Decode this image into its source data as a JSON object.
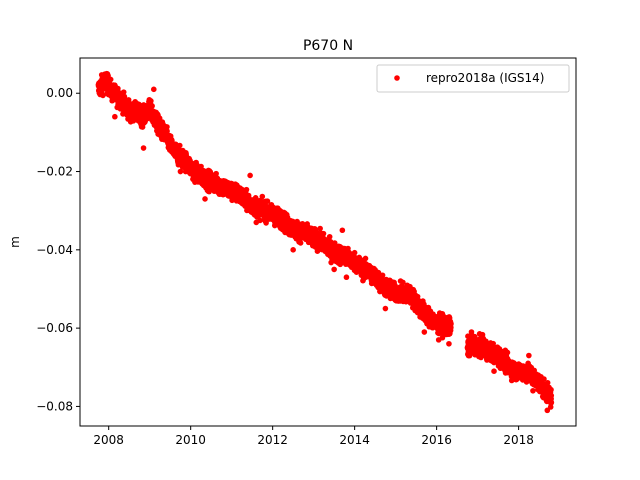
{
  "chart_data": {
    "type": "scatter",
    "title": "P670 N",
    "xlabel": "",
    "ylabel": "m",
    "xlim": [
      2007.3,
      2019.4
    ],
    "ylim": [
      -0.085,
      0.009
    ],
    "x_ticks": [
      2008,
      2010,
      2012,
      2014,
      2016,
      2018
    ],
    "y_ticks": [
      0.0,
      -0.02,
      -0.04,
      -0.06,
      -0.08
    ],
    "y_tick_labels": [
      "0.00",
      "−0.02",
      "−0.04",
      "−0.06",
      "−0.08"
    ],
    "grid": false,
    "legend_position": "top-right",
    "series": [
      {
        "name": "repro2018a (IGS14)",
        "color": "#ff0000",
        "marker": "circle",
        "gaps": [
          [
            2016.35,
            2016.75
          ]
        ],
        "points": [
          [
            2007.75,
            0.001
          ],
          [
            2007.9,
            0.003
          ],
          [
            2008.0,
            0.002
          ],
          [
            2008.1,
            0.0
          ],
          [
            2008.25,
            -0.001
          ],
          [
            2008.4,
            -0.003
          ],
          [
            2008.55,
            -0.005
          ],
          [
            2008.7,
            -0.005
          ],
          [
            2008.85,
            -0.006
          ],
          [
            2009.0,
            -0.004
          ],
          [
            2009.1,
            -0.006
          ],
          [
            2009.25,
            -0.009
          ],
          [
            2009.4,
            -0.011
          ],
          [
            2009.55,
            -0.014
          ],
          [
            2009.7,
            -0.016
          ],
          [
            2009.85,
            -0.017
          ],
          [
            2010.0,
            -0.019
          ],
          [
            2010.2,
            -0.021
          ],
          [
            2010.4,
            -0.022
          ],
          [
            2010.6,
            -0.023
          ],
          [
            2010.8,
            -0.024
          ],
          [
            2011.0,
            -0.025
          ],
          [
            2011.2,
            -0.026
          ],
          [
            2011.4,
            -0.028
          ],
          [
            2011.6,
            -0.029
          ],
          [
            2011.8,
            -0.03
          ],
          [
            2012.0,
            -0.031
          ],
          [
            2012.2,
            -0.032
          ],
          [
            2012.4,
            -0.034
          ],
          [
            2012.6,
            -0.035
          ],
          [
            2012.8,
            -0.036
          ],
          [
            2013.0,
            -0.037
          ],
          [
            2013.2,
            -0.038
          ],
          [
            2013.4,
            -0.04
          ],
          [
            2013.6,
            -0.041
          ],
          [
            2013.8,
            -0.042
          ],
          [
            2014.0,
            -0.043
          ],
          [
            2014.2,
            -0.045
          ],
          [
            2014.4,
            -0.046
          ],
          [
            2014.6,
            -0.048
          ],
          [
            2014.8,
            -0.05
          ],
          [
            2015.0,
            -0.051
          ],
          [
            2015.2,
            -0.051
          ],
          [
            2015.4,
            -0.052
          ],
          [
            2015.6,
            -0.055
          ],
          [
            2015.8,
            -0.057
          ],
          [
            2016.0,
            -0.059
          ],
          [
            2016.2,
            -0.059
          ],
          [
            2016.35,
            -0.06
          ],
          [
            2016.75,
            -0.065
          ],
          [
            2016.9,
            -0.064
          ],
          [
            2017.1,
            -0.065
          ],
          [
            2017.3,
            -0.066
          ],
          [
            2017.5,
            -0.067
          ],
          [
            2017.7,
            -0.069
          ],
          [
            2017.9,
            -0.071
          ],
          [
            2018.1,
            -0.071
          ],
          [
            2018.3,
            -0.072
          ],
          [
            2018.5,
            -0.074
          ],
          [
            2018.65,
            -0.076
          ],
          [
            2018.8,
            -0.078
          ]
        ],
        "outliers": [
          [
            2008.15,
            -0.006
          ],
          [
            2008.85,
            -0.014
          ],
          [
            2009.75,
            -0.02
          ],
          [
            2010.35,
            -0.027
          ],
          [
            2011.6,
            -0.033
          ],
          [
            2012.5,
            -0.04
          ],
          [
            2013.5,
            -0.045
          ],
          [
            2013.8,
            -0.047
          ],
          [
            2014.75,
            -0.055
          ],
          [
            2015.7,
            -0.061
          ],
          [
            2016.05,
            -0.063
          ],
          [
            2016.3,
            -0.064
          ],
          [
            2017.4,
            -0.071
          ],
          [
            2018.35,
            -0.076
          ],
          [
            2018.7,
            -0.081
          ],
          [
            2007.95,
            0.005
          ],
          [
            2009.1,
            0.001
          ],
          [
            2011.45,
            -0.021
          ],
          [
            2013.7,
            -0.035
          ],
          [
            2016.85,
            -0.061
          ],
          [
            2018.25,
            -0.067
          ]
        ]
      }
    ]
  }
}
